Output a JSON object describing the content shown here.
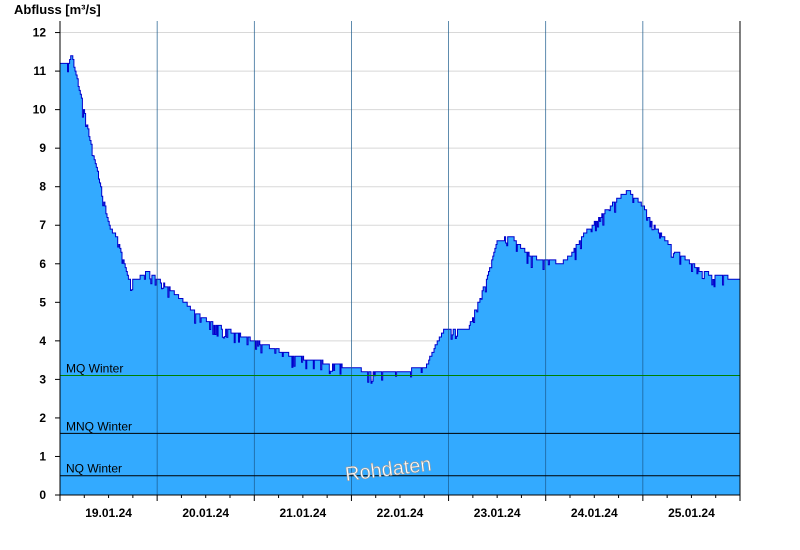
{
  "chart_data": {
    "type": "area",
    "ylabel": "Abfluss [m³/s]",
    "xlabel": "",
    "ylim": [
      0,
      12.3
    ],
    "yticks": [
      0,
      1,
      2,
      3,
      4,
      5,
      6,
      7,
      8,
      9,
      10,
      11,
      12
    ],
    "x_range_days": [
      0,
      7
    ],
    "x_tick_labels": [
      "19.01.24",
      "20.01.24",
      "21.01.24",
      "22.01.24",
      "23.01.24",
      "24.01.24",
      "25.01.24"
    ],
    "grid": true,
    "watermark": "Rohdaten",
    "reference_lines": [
      {
        "label": "MQ Winter",
        "value": 3.1,
        "color": "#008000"
      },
      {
        "label": "MNQ Winter",
        "value": 1.6,
        "color": "#000000"
      },
      {
        "label": "NQ Winter",
        "value": 0.5,
        "color": "#000000"
      }
    ],
    "series": [
      {
        "fill_color": "#33aaff",
        "line_color": "#0000cc",
        "x": [
          0.0,
          0.08,
          0.12,
          0.2,
          0.3,
          0.4,
          0.5,
          0.6,
          0.7,
          0.8,
          0.9,
          1.0,
          1.2,
          1.4,
          1.6,
          1.8,
          2.0,
          2.2,
          2.4,
          2.6,
          2.8,
          3.0,
          3.2,
          3.4,
          3.6,
          3.75,
          3.85,
          3.95,
          4.1,
          4.2,
          4.35,
          4.5,
          4.65,
          4.75,
          4.85,
          4.95,
          5.05,
          5.15,
          5.25,
          5.4,
          5.55,
          5.7,
          5.85,
          6.0,
          6.1,
          6.2,
          6.3,
          6.4,
          6.5,
          6.6,
          6.75,
          7.0
        ],
        "y": [
          11.2,
          11.2,
          11.4,
          10.5,
          9.3,
          8.2,
          7.0,
          6.6,
          5.6,
          5.6,
          5.8,
          5.6,
          5.2,
          4.7,
          4.4,
          4.2,
          4.0,
          3.8,
          3.6,
          3.5,
          3.4,
          3.3,
          3.2,
          3.2,
          3.25,
          3.25,
          3.8,
          4.3,
          4.3,
          4.3,
          5.3,
          6.6,
          6.7,
          6.4,
          6.2,
          6.1,
          6.1,
          6.0,
          6.2,
          6.8,
          7.2,
          7.6,
          7.9,
          7.5,
          7.0,
          6.7,
          6.4,
          6.2,
          6.0,
          5.8,
          5.7,
          5.6
        ]
      }
    ]
  }
}
